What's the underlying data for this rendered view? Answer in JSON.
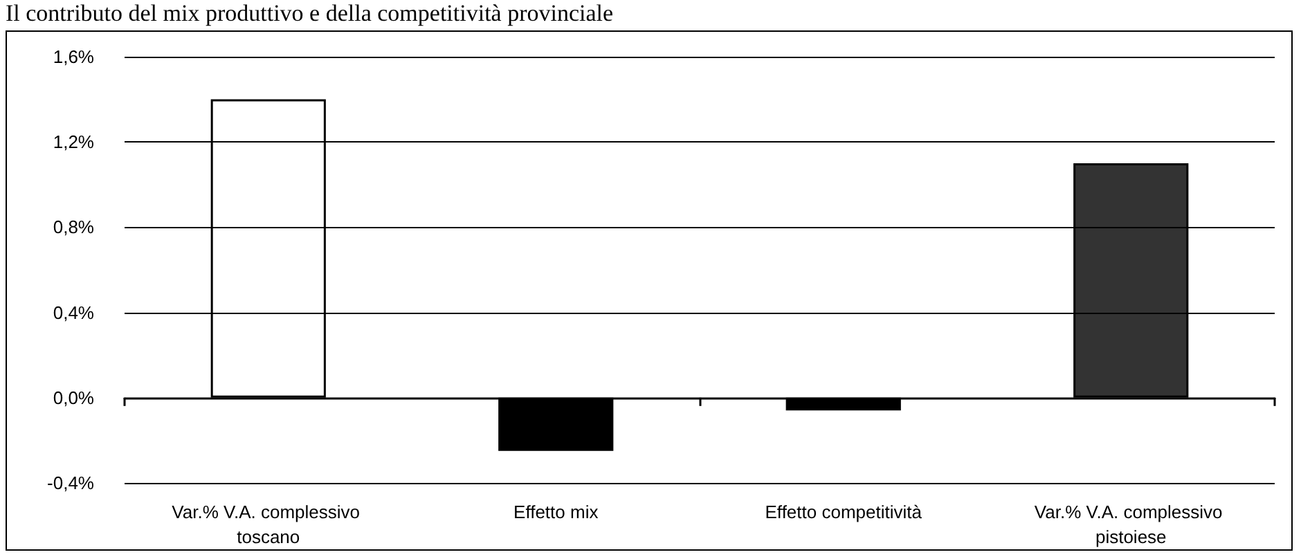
{
  "chart_data": {
    "type": "bar",
    "title": "Il contributo del mix produttivo e della competitività provinciale",
    "categories": [
      "Var.% V.A. complessivo toscano",
      "Effetto mix",
      "Effetto competitività",
      "Var.% V.A. complessivo pistoiese"
    ],
    "values": [
      1.4,
      -0.25,
      -0.06,
      1.1
    ],
    "colors": [
      "#ffffff",
      "#000000",
      "#000000",
      "#333333"
    ],
    "ylim": [
      -0.4,
      1.6
    ],
    "yticks": [
      {
        "value": -0.4,
        "label": "-0,4%"
      },
      {
        "value": 0,
        "label": "0,0%"
      },
      {
        "value": 0.4,
        "label": "0,4%"
      },
      {
        "value": 0.8,
        "label": "0,8%"
      },
      {
        "value": 1.2,
        "label": "1,2%"
      },
      {
        "value": 1.6,
        "label": "1,6%"
      }
    ],
    "grid": "y"
  }
}
